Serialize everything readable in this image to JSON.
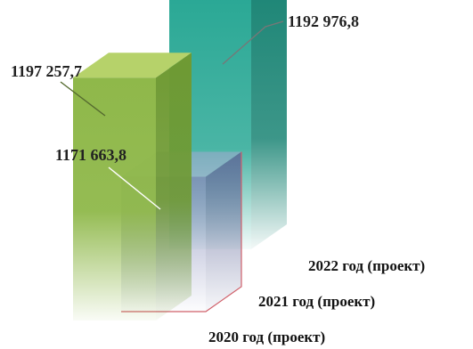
{
  "chart_data": {
    "type": "bar",
    "categories": [
      "2020 год (проект)",
      "2021 год (проект)",
      "2022 год (проект)"
    ],
    "values": [
      1197257.7,
      1171663.8,
      1192976.8
    ],
    "value_labels": [
      "1197 257,7",
      "1171 663,8",
      "1192 976,8"
    ],
    "ylim": [
      1165000,
      1200000
    ],
    "title": "",
    "xlabel": "",
    "ylabel": "",
    "grid": false,
    "legend": "none",
    "style": "3d-columns",
    "colors": {
      "2020": {
        "front": "#8fb84a",
        "side": "#6f9a33",
        "top": "#b6d26a"
      },
      "2021": {
        "front": "#7c83b4",
        "side": "#5f6798",
        "top": "#a3a8cf",
        "edge": "#d0606a"
      },
      "2022": {
        "front": "#2aa895",
        "side": "#1a8474",
        "top": "#5fc8b6"
      }
    }
  }
}
